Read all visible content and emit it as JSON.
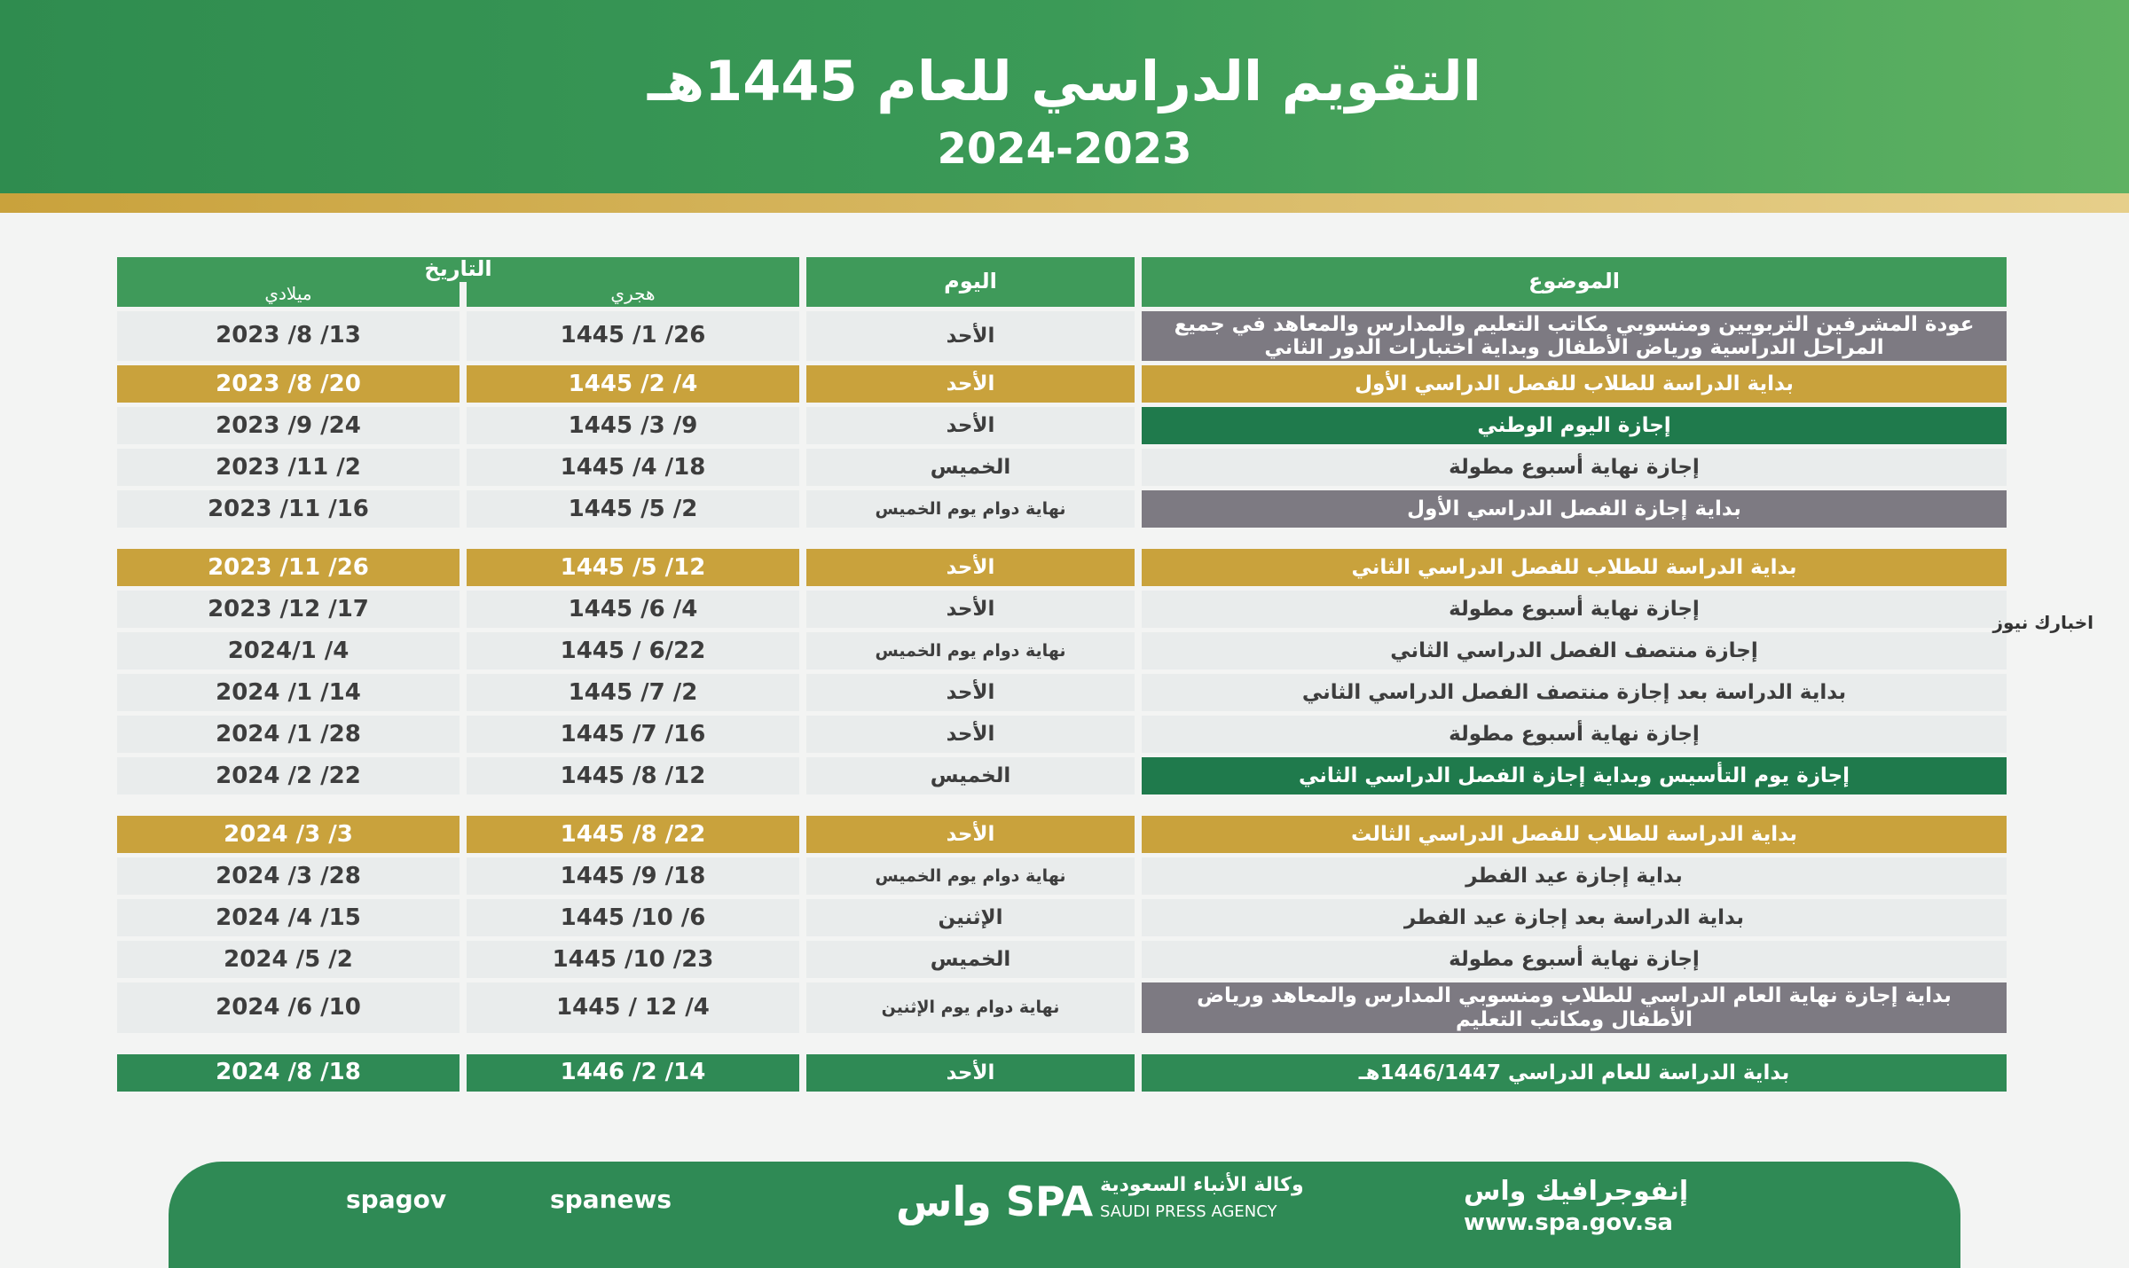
{
  "header": {
    "title": "التقويم الدراسي للعام 1445هـ",
    "subtitle": "2024-2023"
  },
  "table": {
    "columns": {
      "topic": "الموضوع",
      "day": "اليوم",
      "date": "التاريخ",
      "hijri": "هجري",
      "gregorian": "ميلادي"
    },
    "groups": [
      {
        "rows": [
          {
            "topic": "عودة المشرفين التربويين ومنسوبي مكاتب التعليم والمدارس والمعاهد في جميع المراحل الدراسية ورياض الأطفال وبداية اختبارات الدور الثاني",
            "day": "الأحد",
            "hijri": "1445 /1 /26",
            "gregorian": "2023 /8 /13",
            "topic_color": "#7d7a82"
          },
          {
            "topic": "بداية الدراسة للطلاب للفصل الدراسي الأول",
            "day": "الأحد",
            "hijri": "1445 /2 /4",
            "gregorian": "2023 /8 /20",
            "row_color": "#c9a23c"
          },
          {
            "topic": "إجازة اليوم الوطني",
            "day": "الأحد",
            "hijri": "1445 /3 /9",
            "gregorian": "2023 /9 /24",
            "topic_color": "#1f7a4c"
          },
          {
            "topic": "إجازة نهاية أسبوع مطولة",
            "day": "الخميس",
            "hijri": "1445 /4 /18",
            "gregorian": "2023 /11 /2"
          },
          {
            "topic": "بداية إجازة الفصل الدراسي الأول",
            "day": "نهاية دوام يوم الخميس",
            "hijri": "1445 /5 /2",
            "gregorian": "2023 /11 /16",
            "topic_color": "#7d7a82"
          }
        ]
      },
      {
        "rows": [
          {
            "topic": "بداية الدراسة للطلاب للفصل الدراسي الثاني",
            "day": "الأحد",
            "hijri": "1445 /5 /12",
            "gregorian": "2023 /11 /26",
            "row_color": "#c9a23c"
          },
          {
            "topic": "إجازة نهاية أسبوع مطولة",
            "day": "الأحد",
            "hijri": "1445 /6 /4",
            "gregorian": "2023 /12 /17"
          },
          {
            "topic": "إجازة منتصف الفصل الدراسي الثاني",
            "day": "نهاية دوام يوم الخميس",
            "hijri": "1445 / 6/22",
            "gregorian": "2024/1 /4"
          },
          {
            "topic": "بداية الدراسة بعد إجازة منتصف الفصل الدراسي الثاني",
            "day": "الأحد",
            "hijri": "1445 /7 /2",
            "gregorian": "2024 /1 /14"
          },
          {
            "topic": "إجازة نهاية أسبوع مطولة",
            "day": "الأحد",
            "hijri": "1445 /7 /16",
            "gregorian": "2024 /1 /28"
          },
          {
            "topic": "إجازة يوم التأسيس وبداية إجازة الفصل الدراسي الثاني",
            "day": "الخميس",
            "hijri": "1445 /8 /12",
            "gregorian": "2024 /2 /22",
            "topic_color": "#1f7a4c"
          }
        ]
      },
      {
        "rows": [
          {
            "topic": "بداية الدراسة للطلاب للفصل الدراسي الثالث",
            "day": "الأحد",
            "hijri": "1445 /8 /22",
            "gregorian": "2024 /3 /3",
            "row_color": "#c9a23c"
          },
          {
            "topic": "بداية إجازة عيد الفطر",
            "day": "نهاية دوام يوم الخميس",
            "hijri": "1445 /9 /18",
            "gregorian": "2024 /3 /28"
          },
          {
            "topic": "بداية الدراسة بعد إجازة عيد الفطر",
            "day": "الإثنين",
            "hijri": "1445 /10 /6",
            "gregorian": "2024 /4 /15"
          },
          {
            "topic": "إجازة نهاية أسبوع مطولة",
            "day": "الخميس",
            "hijri": "1445 /10 /23",
            "gregorian": "2024 /5 /2"
          },
          {
            "topic": "بداية إجازة نهاية العام الدراسي للطلاب ومنسوبي المدارس والمعاهد ورياض الأطفال ومكاتب التعليم",
            "day": "نهاية دوام يوم الإثنين",
            "hijri": "1445 / 12 /4",
            "gregorian": "2024 /6 /10",
            "topic_color": "#7d7a82"
          }
        ]
      },
      {
        "rows": [
          {
            "topic": "بداية الدراسة للعام الدراسي 1446/1447هـ",
            "day": "الأحد",
            "hijri": "1446 /2 /14",
            "gregorian": "2024 /8 /18",
            "row_color": "#2f8a55"
          }
        ]
      }
    ]
  },
  "footer": {
    "infographic": "إنفوجرافيك واس",
    "url": "www.spa.gov.sa",
    "agency_ar": "وكالة الأنباء السعودية",
    "agency_en": "SAUDI PRESS AGENCY",
    "logo": "واس SPA",
    "handle1": "spagov",
    "handle2": "spanews"
  },
  "watermark": "اخبارك نيوز"
}
